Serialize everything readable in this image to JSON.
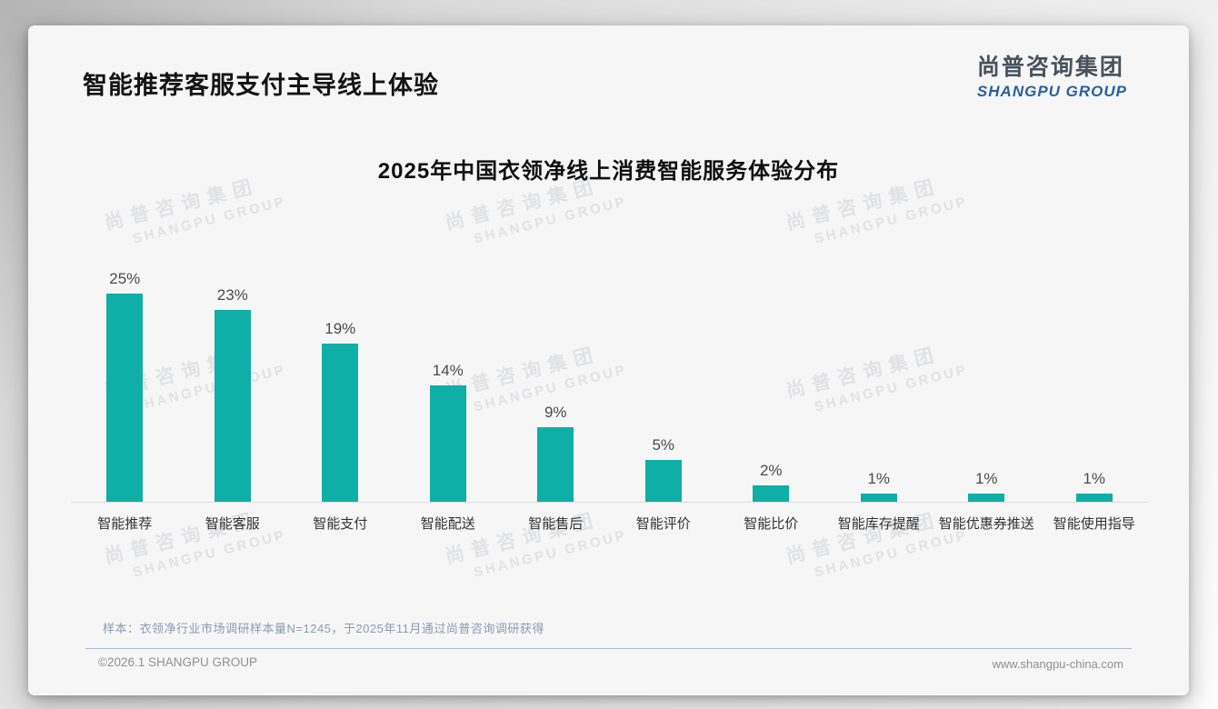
{
  "page": {
    "title": "智能推荐客服支付主导线上体验",
    "logo": {
      "cn": "尚普咨询集团",
      "en": "SHANGPU GROUP"
    },
    "watermark": {
      "cn": "尚普咨询集团",
      "en": "SHANGPU GROUP"
    },
    "note": "样本：衣领净行业市场调研样本量N=1245，于2025年11月通过尚普咨询调研获得",
    "footer": {
      "left": "©2026.1 SHANGPU GROUP",
      "right": "www.shangpu-china.com"
    }
  },
  "colors": {
    "bar": "#0FAEA6",
    "logo_blue": "#2A5F9E",
    "logo_dark": "#47525D",
    "note_text": "#8B9BB0",
    "divider": "#A9BED2",
    "axis_line": "#DCDCDC"
  },
  "chart_data": {
    "type": "bar",
    "title": "2025年中国衣领净线上消费智能服务体验分布",
    "categories": [
      "智能推荐",
      "智能客服",
      "智能支付",
      "智能配送",
      "智能售后",
      "智能评价",
      "智能比价",
      "智能库存提醒",
      "智能优惠券推送",
      "智能使用指导"
    ],
    "values": [
      25,
      23,
      19,
      14,
      9,
      5,
      2,
      1,
      1,
      1
    ],
    "value_labels": [
      "25%",
      "23%",
      "19%",
      "14%",
      "9%",
      "5%",
      "2%",
      "1%",
      "1%",
      "1%"
    ],
    "unit": "%",
    "xlabel": "",
    "ylabel": "",
    "ylim": [
      0,
      25
    ],
    "grid": false,
    "legend": false,
    "bar_color": "#0FAEA6",
    "value_label_position": "above-bar"
  }
}
